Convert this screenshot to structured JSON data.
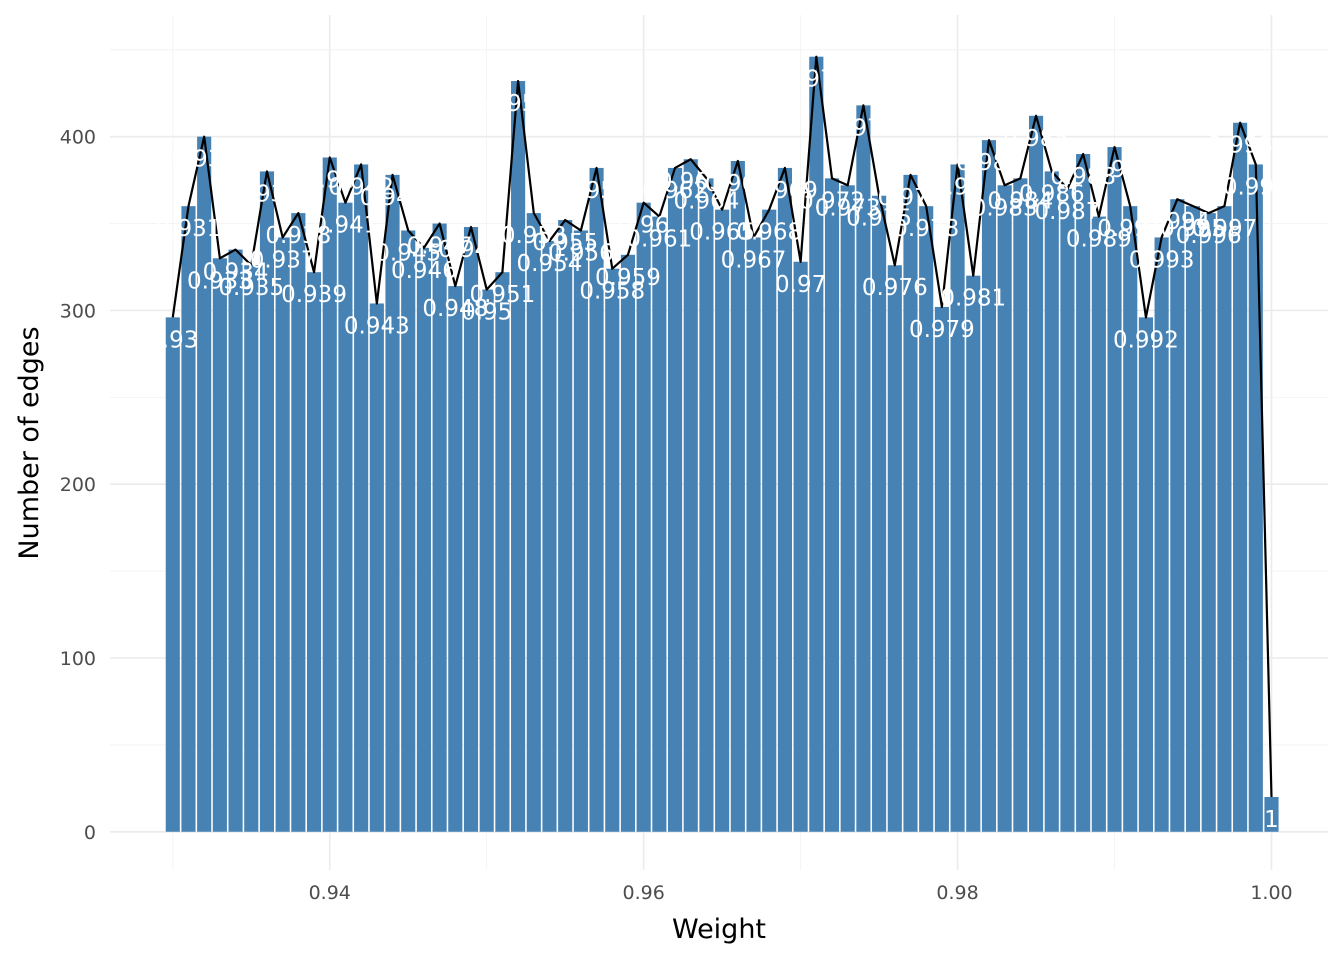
{
  "chart_data": {
    "type": "bar",
    "title": "",
    "xlabel": "Weight",
    "ylabel": "Number of edges",
    "xlim": [
      0.926,
      1.0036
    ],
    "ylim": [
      -22,
      470
    ],
    "x_ticks": [
      0.94,
      0.96,
      0.98,
      1.0
    ],
    "x_tick_labels": [
      "0.94",
      "0.96",
      "0.98",
      "1.00"
    ],
    "y_ticks": [
      0,
      100,
      200,
      300,
      400
    ],
    "y_tick_labels": [
      "0",
      "100",
      "200",
      "300",
      "400"
    ],
    "grid": true,
    "bar_color": "#4682b4",
    "line_color": "#000000",
    "label_color": "#ffffff",
    "overlay_line": true,
    "x": [
      0.93,
      0.931,
      0.932,
      0.933,
      0.934,
      0.935,
      0.936,
      0.937,
      0.938,
      0.939,
      0.94,
      0.941,
      0.942,
      0.943,
      0.944,
      0.945,
      0.946,
      0.947,
      0.948,
      0.949,
      0.95,
      0.951,
      0.952,
      0.953,
      0.954,
      0.955,
      0.956,
      0.957,
      0.958,
      0.959,
      0.96,
      0.961,
      0.962,
      0.963,
      0.964,
      0.965,
      0.966,
      0.967,
      0.968,
      0.969,
      0.97,
      0.971,
      0.972,
      0.973,
      0.974,
      0.975,
      0.976,
      0.977,
      0.978,
      0.979,
      0.98,
      0.981,
      0.982,
      0.983,
      0.984,
      0.985,
      0.986,
      0.987,
      0.988,
      0.989,
      0.99,
      0.991,
      0.992,
      0.993,
      0.994,
      0.995,
      0.996,
      0.997,
      0.998,
      0.999,
      1.0
    ],
    "values": [
      296,
      360,
      400,
      330,
      335,
      326,
      380,
      342,
      356,
      322,
      388,
      362,
      384,
      304,
      378,
      346,
      336,
      350,
      314,
      348,
      312,
      322,
      432,
      356,
      340,
      352,
      346,
      382,
      324,
      332,
      362,
      354,
      382,
      387,
      376,
      358,
      386,
      342,
      358,
      382,
      328,
      446,
      376,
      372,
      418,
      366,
      326,
      378,
      360,
      302,
      384,
      320,
      398,
      372,
      376,
      412,
      380,
      370,
      390,
      354,
      394,
      360,
      296,
      342,
      364,
      360,
      356,
      360,
      408,
      384,
      20
    ],
    "data_labels": [
      "0.93",
      "0.931",
      "0.932",
      "0.933",
      "0.934",
      "0.935",
      "0.936",
      "0.937",
      "0.938",
      "0.939",
      "0.94",
      "0.941",
      "0.942",
      "0.943",
      "0.944",
      "0.945",
      "0.946",
      "0.947",
      "0.948",
      "0.949",
      "0.95",
      "0.951",
      "0.952",
      "0.953",
      "0.954",
      "0.955",
      "0.956",
      "0.957",
      "0.958",
      "0.959",
      "0.96",
      "0.961",
      "0.962",
      "0.963",
      "0.964",
      "0.965",
      "0.966",
      "0.967",
      "0.968",
      "0.969",
      "0.97",
      "0.971",
      "0.972",
      "0.973",
      "0.974",
      "0.975",
      "0.976",
      "0.977",
      "0.978",
      "0.979",
      "0.98",
      "0.981",
      "0.982",
      "0.983",
      "0.984",
      "0.985",
      "0.986",
      "0.987",
      "0.988",
      "0.989",
      "0.99",
      "0.991",
      "0.992",
      "0.993",
      "0.994",
      "0.995",
      "0.996",
      "0.997",
      "0.998",
      "0.999",
      "1"
    ]
  }
}
